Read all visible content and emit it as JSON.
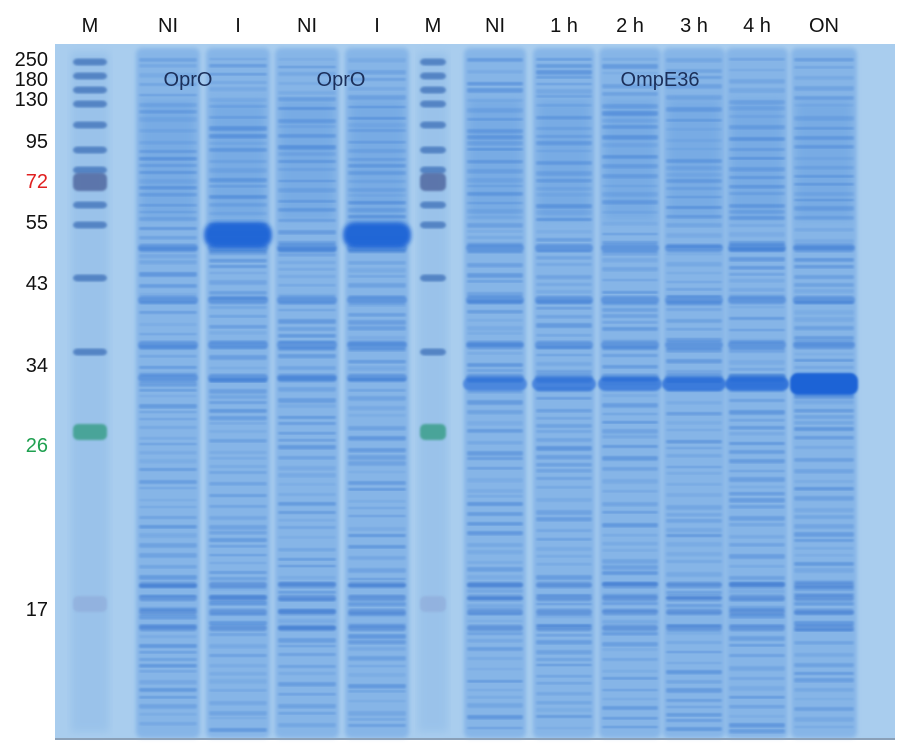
{
  "lanes": [
    "M",
    "NI",
    "I",
    "NI",
    "I",
    "M",
    "NI",
    "1 h",
    "2 h",
    "3 h",
    "4 h",
    "ON"
  ],
  "mw_markers": [
    {
      "label": "250",
      "color": "#111111"
    },
    {
      "label": "180",
      "color": "#111111"
    },
    {
      "label": "130",
      "color": "#111111"
    },
    {
      "label": "95",
      "color": "#111111"
    },
    {
      "label": "72",
      "color": "#e02020"
    },
    {
      "label": "55",
      "color": "#111111"
    },
    {
      "label": "43",
      "color": "#111111"
    },
    {
      "label": "34",
      "color": "#111111"
    },
    {
      "label": "26",
      "color": "#1fa050"
    },
    {
      "label": "17",
      "color": "#111111"
    }
  ],
  "protein_labels": [
    "OprO",
    "OprO",
    "OmpE36"
  ],
  "colors": {
    "gel_background": "#a9cdee",
    "lane_stain": "#4f8fdd",
    "marker_red": "#e02020",
    "marker_green": "#1fa050"
  }
}
